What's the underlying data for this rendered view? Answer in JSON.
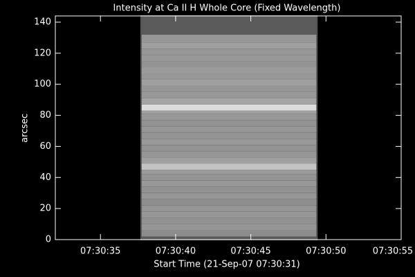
{
  "chart_data": {
    "type": "image",
    "title": "Intensity at Ca II H Whole Core (Fixed Wavelength)",
    "x_label": "Start Time (21-Sep-07 07:30:31)",
    "y_label": "arcsec",
    "xlim": [
      "07:30:32",
      "07:30:55"
    ],
    "xticks": [
      "07:30:35",
      "07:30:40",
      "07:30:45",
      "07:30:50",
      "07:30:55"
    ],
    "ylim": [
      0,
      144
    ],
    "yticks": [
      0,
      20,
      40,
      60,
      80,
      100,
      120,
      140
    ],
    "image_x": [
      "07:30:37.7",
      "07:30:49.4"
    ],
    "profile": {
      "y": [
        0,
        2,
        6,
        10,
        14,
        18,
        22,
        26,
        30,
        34,
        38,
        42,
        45,
        49,
        53,
        57,
        61,
        65,
        69,
        73,
        77,
        81,
        83,
        87,
        91,
        95,
        99,
        103,
        107,
        111,
        115,
        119,
        123,
        127,
        132
      ],
      "values": [
        90,
        140,
        150,
        145,
        150,
        148,
        142,
        150,
        146,
        152,
        148,
        155,
        195,
        160,
        150,
        146,
        152,
        148,
        150,
        146,
        152,
        160,
        220,
        165,
        152,
        150,
        160,
        150,
        155,
        148,
        152,
        150,
        158,
        150,
        90
      ]
    }
  }
}
